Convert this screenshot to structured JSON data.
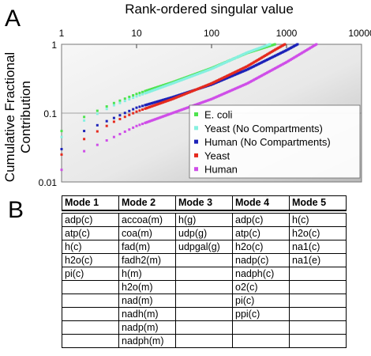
{
  "panel_a_label": "A",
  "panel_b_label": "B",
  "chart_data": {
    "type": "scatter",
    "title": "",
    "xlabel": "Rank-ordered singular value",
    "ylabel": "Cumulative Fractional Contribution",
    "x_scale": "log",
    "y_scale": "log",
    "xlim": [
      1,
      10000
    ],
    "ylim": [
      0.01,
      1
    ],
    "x_ticks": [
      "1",
      "10",
      "100",
      "1000",
      "10000"
    ],
    "y_ticks": [
      "1",
      "0.1",
      "0.01"
    ],
    "grid": true,
    "legend_position": "bottom-right",
    "series": [
      {
        "name": "E. coli",
        "color": "#4ee34e",
        "x": [
          1,
          2,
          5,
          10,
          30,
          100,
          300,
          700
        ],
        "y": [
          0.055,
          0.088,
          0.14,
          0.19,
          0.28,
          0.45,
          0.75,
          1.0
        ]
      },
      {
        "name": "Yeast (No Compartments)",
        "color": "#86f0e0",
        "x": [
          1,
          2,
          5,
          10,
          30,
          100,
          300,
          600
        ],
        "y": [
          0.045,
          0.078,
          0.13,
          0.175,
          0.27,
          0.44,
          0.76,
          1.0
        ]
      },
      {
        "name": "Human (No Compartments)",
        "color": "#1c22b8",
        "x": [
          1,
          2,
          5,
          10,
          30,
          100,
          300,
          1000,
          1400
        ],
        "y": [
          0.03,
          0.055,
          0.085,
          0.12,
          0.17,
          0.26,
          0.43,
          0.82,
          1.0
        ]
      },
      {
        "name": "Yeast",
        "color": "#e52a1e",
        "x": [
          1,
          2,
          5,
          10,
          30,
          100,
          300,
          700,
          950
        ],
        "y": [
          0.025,
          0.042,
          0.075,
          0.105,
          0.16,
          0.27,
          0.48,
          0.83,
          1.0
        ]
      },
      {
        "name": "Human",
        "color": "#cf4ee8",
        "x": [
          1,
          2,
          5,
          10,
          30,
          100,
          300,
          1000,
          2500
        ],
        "y": [
          0.015,
          0.028,
          0.045,
          0.065,
          0.1,
          0.16,
          0.27,
          0.55,
          1.0
        ]
      }
    ]
  },
  "table": {
    "headers": [
      "Mode 1",
      "Mode 2",
      "Mode 3",
      "Mode 4",
      "Mode 5"
    ],
    "rows": [
      [
        "adp(c)",
        "accoa(m)",
        "h(g)",
        "adp(c)",
        "h(c)"
      ],
      [
        "atp(c)",
        "coa(m)",
        "udp(g)",
        "atp(c)",
        "h2o(c)"
      ],
      [
        "h(c)",
        "fad(m)",
        "udpgal(g)",
        "h2o(c)",
        "na1(c)"
      ],
      [
        "h2o(c)",
        "fadh2(m)",
        "",
        "nadp(c)",
        "na1(e)"
      ],
      [
        "pi(c)",
        "h(m)",
        "",
        "nadph(c)",
        ""
      ],
      [
        "",
        "h2o(m)",
        "",
        "o2(c)",
        ""
      ],
      [
        "",
        "nad(m)",
        "",
        "pi(c)",
        ""
      ],
      [
        "",
        "nadh(m)",
        "",
        "ppi(c)",
        ""
      ],
      [
        "",
        "nadp(m)",
        "",
        "",
        ""
      ],
      [
        "",
        "nadph(m)",
        "",
        "",
        ""
      ]
    ]
  }
}
